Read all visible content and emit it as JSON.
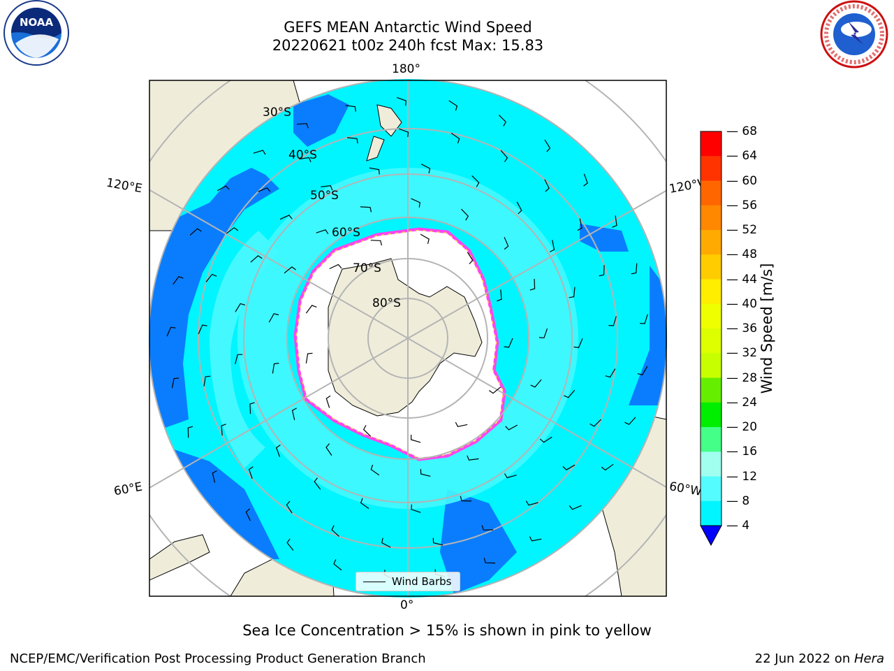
{
  "title": {
    "line1": "GEFS MEAN Antarctic Wind Speed",
    "line2": "20220621 t00z 240h fcst   Max: 15.83"
  },
  "map": {
    "projection": "south-polar-stereographic",
    "longitude_labels": {
      "top": "180°",
      "bottom": "0°",
      "upper_left": "120°E",
      "upper_right": "120°W",
      "lower_left": "60°E",
      "lower_right": "60°W"
    },
    "latitude_labels": [
      "30°S",
      "40°S",
      "50°S",
      "60°S",
      "70°S",
      "80°S"
    ],
    "colors": {
      "land": "#efedda",
      "ice_sheet": "#ffffff",
      "sea_ice_edge_pink": "#ff44ee",
      "sea_ice_edge_yellow": "#ffcc55",
      "graticule": "#b4b4b4",
      "wind_4_8": "#0a7dff",
      "wind_8_12": "#00f5ff",
      "wind_12_16": "#44f8ff"
    }
  },
  "colorbar": {
    "label": "Wind Speed [m/s]",
    "ticks": [
      "68",
      "64",
      "60",
      "56",
      "52",
      "48",
      "44",
      "40",
      "36",
      "32",
      "28",
      "24",
      "20",
      "16",
      "12",
      "8",
      "4"
    ],
    "colors_top_to_bottom": [
      "#ff0000",
      "#ff3300",
      "#ff6600",
      "#ff8800",
      "#ffaa00",
      "#ffcc00",
      "#ffee00",
      "#f0ff00",
      "#ddff00",
      "#c8ff00",
      "#66ee00",
      "#00ee00",
      "#44ff88",
      "#a0ffee",
      "#55fcff",
      "#00f5ff",
      "#0a7dff"
    ],
    "extend_color": "#0000ff"
  },
  "legend": {
    "label": "Wind Barbs"
  },
  "footer": {
    "ice_note": "Sea Ice Concentration > 15% is shown in pink to yellow",
    "credit": "NCEP/EMC/Verification Post Processing Product Generation Branch",
    "date": "22 Jun 2022 on ",
    "machine": "Hera"
  },
  "logos": {
    "left": "NOAA",
    "right": "NATIONAL WEATHER SERVICE"
  }
}
